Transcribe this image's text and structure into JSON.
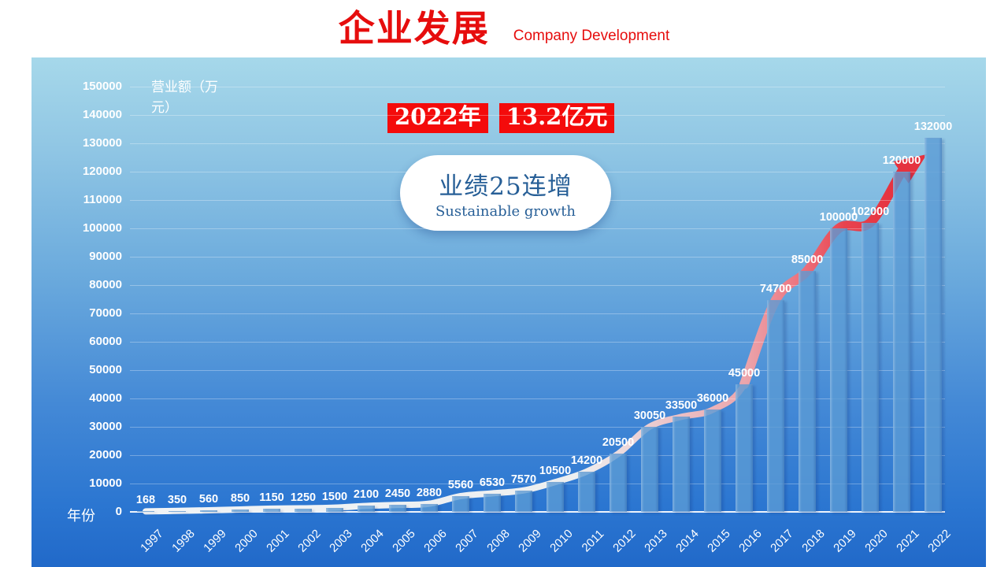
{
  "header": {
    "title": "企业发展",
    "subtitle": "Company Development"
  },
  "annotations": {
    "year_badge": "2022年",
    "value_badge": "13.2亿元",
    "bubble_title": "业绩25连增",
    "bubble_subtitle": "Sustainable growth"
  },
  "chart_data": {
    "type": "bar",
    "categories": [
      "1997",
      "1998",
      "1999",
      "2000",
      "2001",
      "2002",
      "2003",
      "2004",
      "2005",
      "2006",
      "2007",
      "2008",
      "2009",
      "2010",
      "2011",
      "2012",
      "2013",
      "2014",
      "2015",
      "2016",
      "2017",
      "2018",
      "2019",
      "2020",
      "2021",
      "2022"
    ],
    "values": [
      168,
      350,
      560,
      850,
      1150,
      1250,
      1500,
      2100,
      2450,
      2880,
      5560,
      6530,
      7570,
      10500,
      14200,
      20500,
      30050,
      33500,
      36000,
      45000,
      74700,
      85000,
      100000,
      102000,
      120000,
      132000
    ],
    "ylabel": "营业额（万元）",
    "xlabel": "年份",
    "ylim": [
      0,
      150000
    ],
    "ytick_step": 10000,
    "grid": true,
    "legend": "none",
    "overlay": "growth trend line from white to red ending in red arrow"
  },
  "colors": {
    "accent_red": "#e60d0d",
    "badge_bg": "#f40b0b",
    "arrow_red": "#e5323f",
    "bubble_blue": "#275f97",
    "bar_fill": "#5b9bd5",
    "panel_top": "#a6d8ea",
    "panel_bottom": "#2169c9"
  }
}
